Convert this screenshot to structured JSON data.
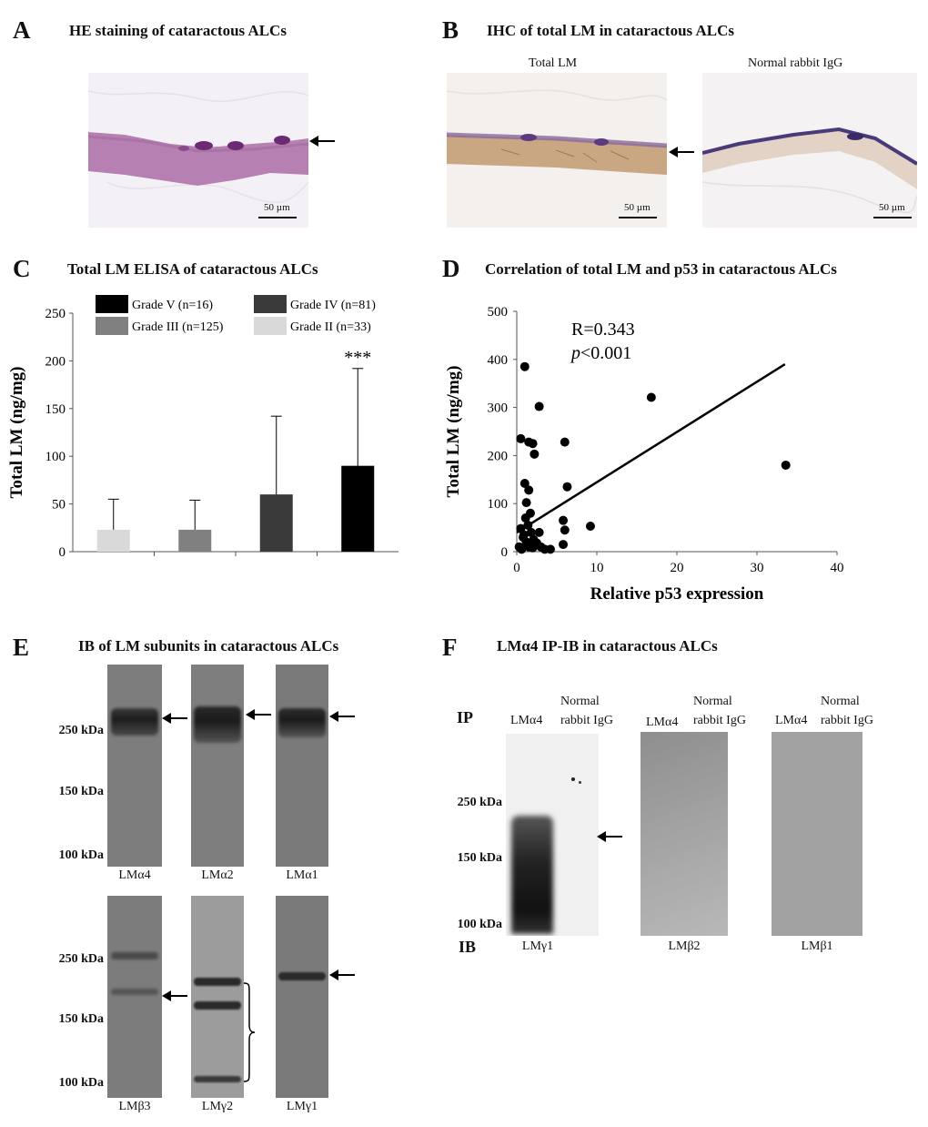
{
  "panels": {
    "A": {
      "letter": "A",
      "title": "HE staining of cataractous ALCs",
      "scale": "50 µm"
    },
    "B": {
      "letter": "B",
      "title": "IHC of total LM in cataractous ALCs",
      "left_label": "Total LM",
      "right_label": "Normal rabbit IgG",
      "scale": "50 µm"
    },
    "C": {
      "letter": "C",
      "title": "Total LM ELISA of cataractous ALCs"
    },
    "D": {
      "letter": "D",
      "title": "Correlation of total LM and p53 in cataractous ALCs",
      "stat_r": "R=0.343",
      "stat_p_italic": "p",
      "stat_p_rest": "<0.001"
    },
    "E": {
      "letter": "E",
      "title": "IB of LM subunits in cataractous ALCs",
      "kda_top": [
        "250 kDa",
        "150 kDa",
        "100 kDa"
      ],
      "kda_bottom": [
        "250 kDa",
        "150 kDa",
        "100 kDa"
      ],
      "lanes_top": [
        "LMα4",
        "LMα2",
        "LMα1"
      ],
      "lanes_bottom": [
        "LMβ3",
        "LMγ2",
        "LMγ1"
      ]
    },
    "F": {
      "letter": "F",
      "title": "LMα4 IP-IB in cataractous ALCs",
      "ip_label": "IP",
      "ib_label": "IB",
      "ip_lane1": "LMα4",
      "ip_lane2_line1": "Normal",
      "ip_lane2_line2": "rabbit IgG",
      "kda": [
        "250 kDa",
        "150 kDa",
        "100 kDa"
      ],
      "ib_lanes": [
        "LMγ1",
        "LMβ2",
        "LMβ1"
      ]
    }
  },
  "chart_data": [
    {
      "type": "bar",
      "title": "Total LM ELISA of cataractous ALCs",
      "ylabel": "Total LM (ng/mg)",
      "ylim": [
        0,
        250
      ],
      "yticks": [
        0,
        50,
        100,
        150,
        200,
        250
      ],
      "categories": [
        "Grade II (n=33)",
        "Grade III (n=125)",
        "Grade IV (n=81)",
        "Grade V (n=16)"
      ],
      "values": [
        23,
        23,
        60,
        90
      ],
      "error_upper": [
        55,
        54,
        142,
        192
      ],
      "colors": [
        "#d9d9d9",
        "#808080",
        "#3a3a3a",
        "#000000"
      ],
      "significance": [
        "",
        "",
        "",
        "***"
      ],
      "legend": [
        "Grade V (n=16)",
        "Grade IV (n=81)",
        "Grade III (n=125)",
        "Grade II (n=33)"
      ],
      "legend_colors": [
        "#000000",
        "#3a3a3a",
        "#808080",
        "#d9d9d9"
      ],
      "legend_position": "top"
    },
    {
      "type": "scatter",
      "title": "Correlation of total LM and p53 in cataractous ALCs",
      "xlabel": "Relative p53 expression",
      "ylabel": "Total LM (ng/mg)",
      "xlim": [
        0,
        40
      ],
      "ylim": [
        0,
        500
      ],
      "xticks": [
        0,
        10,
        20,
        30,
        40
      ],
      "yticks": [
        0,
        100,
        200,
        300,
        400,
        500
      ],
      "points": [
        [
          1,
          385
        ],
        [
          2.8,
          302
        ],
        [
          0.5,
          235
        ],
        [
          1.5,
          228
        ],
        [
          2,
          225
        ],
        [
          2.2,
          203
        ],
        [
          6,
          228
        ],
        [
          16.8,
          321
        ],
        [
          33.6,
          180
        ],
        [
          1,
          142
        ],
        [
          1.5,
          128
        ],
        [
          6.3,
          135
        ],
        [
          1.2,
          102
        ],
        [
          9.2,
          53
        ],
        [
          5.8,
          65
        ],
        [
          6,
          45
        ],
        [
          5.8,
          15
        ],
        [
          0.5,
          48
        ],
        [
          0.8,
          30
        ],
        [
          1.1,
          70
        ],
        [
          1.4,
          55
        ],
        [
          1.8,
          40
        ],
        [
          2.1,
          25
        ],
        [
          2.5,
          18
        ],
        [
          3,
          10
        ],
        [
          3.5,
          5
        ],
        [
          0.3,
          10
        ],
        [
          0.6,
          5
        ],
        [
          1.5,
          10
        ],
        [
          2.0,
          8
        ],
        [
          1.2,
          20
        ],
        [
          0.9,
          35
        ],
        [
          4.2,
          5
        ],
        [
          2.8,
          40
        ],
        [
          1.7,
          80
        ]
      ],
      "regression": {
        "x0": 0,
        "y0": 40,
        "x1": 33.5,
        "y1": 390
      },
      "annotation": [
        "R=0.343",
        "p<0.001"
      ]
    }
  ]
}
